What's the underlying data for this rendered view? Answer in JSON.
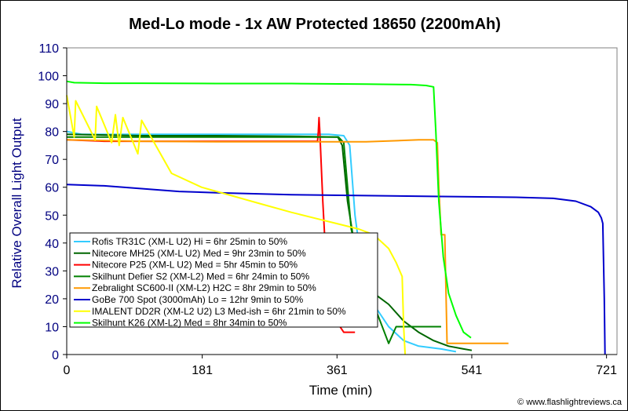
{
  "chart_data": {
    "type": "line",
    "title": "Med-Lo mode - 1x AW Protected 18650 (2200mAh)",
    "xlabel": "Time (min)",
    "ylabel": "Relative Overall Light Output",
    "xlim": [
      0,
      735
    ],
    "ylim": [
      0,
      110
    ],
    "x_ticks": [
      0,
      181,
      361,
      541,
      721
    ],
    "y_ticks": [
      0,
      10,
      20,
      30,
      40,
      50,
      60,
      70,
      80,
      90,
      100,
      110
    ],
    "grid": false,
    "legend_position": "bottom-left",
    "plot_background": "#ffffff",
    "series": [
      {
        "name": "Rofis TR31C (XM-L U2) Hi = 6hr 25min to 50%",
        "color": "#33ccff",
        "points": [
          [
            0,
            80
          ],
          [
            20,
            79
          ],
          [
            100,
            79
          ],
          [
            200,
            79
          ],
          [
            300,
            79
          ],
          [
            350,
            79
          ],
          [
            370,
            78.5
          ],
          [
            378,
            75
          ],
          [
            385,
            50
          ],
          [
            395,
            30
          ],
          [
            410,
            18
          ],
          [
            430,
            10
          ],
          [
            450,
            5
          ],
          [
            470,
            3
          ],
          [
            500,
            2
          ],
          [
            520,
            1
          ]
        ]
      },
      {
        "name": "Nitecore MH25 (XM-L U2) Med = 9hr 23min to 50%",
        "color": "#006600",
        "points": [
          [
            0,
            79
          ],
          [
            100,
            78.5
          ],
          [
            200,
            78.5
          ],
          [
            300,
            78.3
          ],
          [
            362,
            78
          ],
          [
            368,
            75
          ],
          [
            375,
            55
          ],
          [
            385,
            38
          ],
          [
            395,
            28
          ],
          [
            410,
            22
          ],
          [
            430,
            18
          ],
          [
            450,
            12
          ],
          [
            470,
            8
          ],
          [
            490,
            5
          ],
          [
            510,
            3
          ],
          [
            530,
            2
          ],
          [
            541,
            1.5
          ]
        ]
      },
      {
        "name": "Nitecore P25 (XM-L U2) Med = 5hr 45min to 50%",
        "color": "#ff0000",
        "points": [
          [
            0,
            77
          ],
          [
            50,
            76.5
          ],
          [
            100,
            76.5
          ],
          [
            200,
            76.5
          ],
          [
            300,
            76.5
          ],
          [
            335,
            76.5
          ],
          [
            336,
            80
          ],
          [
            337,
            85
          ],
          [
            338,
            80
          ],
          [
            342,
            55
          ],
          [
            346,
            35
          ],
          [
            352,
            20
          ],
          [
            360,
            12
          ],
          [
            370,
            8
          ],
          [
            385,
            8
          ]
        ]
      },
      {
        "name": "Skilhunt Defier S2 (XM-L2) Med = 6hr 24min to 50%",
        "color": "#008000",
        "points": [
          [
            0,
            78
          ],
          [
            100,
            78
          ],
          [
            200,
            78
          ],
          [
            300,
            78
          ],
          [
            363,
            78
          ],
          [
            370,
            76
          ],
          [
            380,
            45
          ],
          [
            395,
            28
          ],
          [
            410,
            18
          ],
          [
            420,
            11
          ],
          [
            430,
            4
          ],
          [
            440,
            10
          ],
          [
            450,
            10
          ],
          [
            470,
            10
          ],
          [
            490,
            10
          ],
          [
            500,
            10
          ]
        ]
      },
      {
        "name": "Zebralight SC600-II (XM-L2) H2C = 8hr 29min to 50%",
        "color": "#ff9900",
        "points": [
          [
            0,
            77
          ],
          [
            100,
            76.5
          ],
          [
            200,
            76.3
          ],
          [
            300,
            76.3
          ],
          [
            400,
            76.3
          ],
          [
            450,
            76.8
          ],
          [
            470,
            77
          ],
          [
            490,
            77
          ],
          [
            495,
            76
          ],
          [
            497,
            60
          ],
          [
            500,
            43
          ],
          [
            505,
            43
          ],
          [
            508,
            4
          ],
          [
            520,
            4
          ],
          [
            550,
            4
          ],
          [
            590,
            4
          ]
        ]
      },
      {
        "name": "GoBe 700 Spot (3000mAh) Lo = 12hr 9min to 50%",
        "color": "#0000cc",
        "points": [
          [
            0,
            61
          ],
          [
            50,
            60.5
          ],
          [
            100,
            59.5
          ],
          [
            150,
            58.5
          ],
          [
            200,
            58
          ],
          [
            300,
            57.3
          ],
          [
            400,
            57
          ],
          [
            500,
            56.7
          ],
          [
            600,
            56.4
          ],
          [
            650,
            56
          ],
          [
            680,
            55
          ],
          [
            700,
            53
          ],
          [
            710,
            51
          ],
          [
            714,
            49
          ],
          [
            716,
            47
          ],
          [
            718,
            20
          ],
          [
            719,
            0
          ]
        ]
      },
      {
        "name": "IMALENT DD2R (XM-L2 U2) L3 Med-ish = 6hr 21min to 50%",
        "color": "#ffff00",
        "points": [
          [
            0,
            93
          ],
          [
            10,
            78
          ],
          [
            12,
            91
          ],
          [
            38,
            77
          ],
          [
            40,
            89
          ],
          [
            60,
            76
          ],
          [
            65,
            86
          ],
          [
            70,
            75
          ],
          [
            75,
            85
          ],
          [
            95,
            72
          ],
          [
            100,
            84
          ],
          [
            140,
            65
          ],
          [
            180,
            60
          ],
          [
            220,
            57
          ],
          [
            260,
            54
          ],
          [
            300,
            51
          ],
          [
            330,
            49
          ],
          [
            360,
            47
          ],
          [
            390,
            45
          ],
          [
            410,
            43
          ],
          [
            430,
            38
          ],
          [
            440,
            33
          ],
          [
            448,
            28
          ],
          [
            450,
            10
          ],
          [
            452,
            0
          ]
        ]
      },
      {
        "name": "Skilhunt K26 (XM-L2) Med = 8hr 34min to 50%",
        "color": "#00ff00",
        "points": [
          [
            0,
            98
          ],
          [
            10,
            97.5
          ],
          [
            50,
            97.3
          ],
          [
            100,
            97.3
          ],
          [
            200,
            97.2
          ],
          [
            300,
            97.2
          ],
          [
            400,
            97
          ],
          [
            460,
            96.8
          ],
          [
            480,
            96.5
          ],
          [
            490,
            96
          ],
          [
            493,
            80
          ],
          [
            497,
            55
          ],
          [
            503,
            35
          ],
          [
            510,
            22
          ],
          [
            520,
            14
          ],
          [
            530,
            8
          ],
          [
            540,
            6
          ]
        ]
      }
    ]
  },
  "credit": "© www.flashlightreviews.ca"
}
